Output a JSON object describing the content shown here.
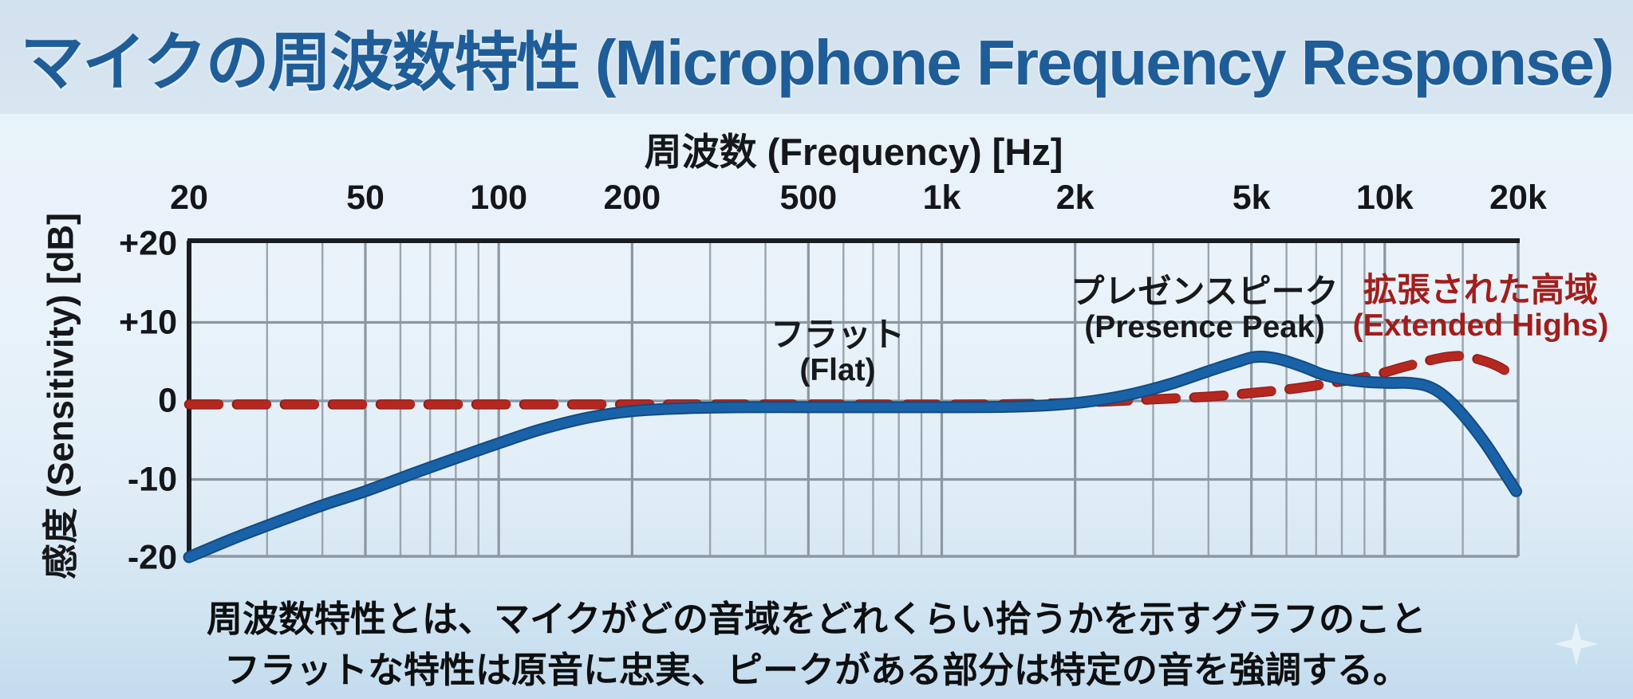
{
  "title": "マイクの周波数特性 (Microphone Frequency Response)",
  "chart_data": {
    "type": "line",
    "title": "マイクの周波数特性 (Microphone Frequency Response)",
    "xlabel": "周波数 (Frequency) [Hz]",
    "ylabel": "感度 (Sensitivity) [dB]",
    "x_scale": "log",
    "x_range_hz": [
      20,
      20000
    ],
    "y_range_db": [
      -20,
      20
    ],
    "grid": true,
    "x_ticks": [
      {
        "label": "20",
        "hz": 20
      },
      {
        "label": "50",
        "hz": 50
      },
      {
        "label": "100",
        "hz": 100
      },
      {
        "label": "200",
        "hz": 200
      },
      {
        "label": "500",
        "hz": 500
      },
      {
        "label": "1k",
        "hz": 1000
      },
      {
        "label": "2k",
        "hz": 2000
      },
      {
        "label": "5k",
        "hz": 5000
      },
      {
        "label": "10k",
        "hz": 10000
      },
      {
        "label": "20k",
        "hz": 20000
      }
    ],
    "y_ticks": [
      {
        "label": "+20",
        "db": 20
      },
      {
        "label": "+10",
        "db": 10
      },
      {
        "label": "0",
        "db": 0
      },
      {
        "label": "-10",
        "db": -10
      },
      {
        "label": "-20",
        "db": -20
      }
    ],
    "minor_gridlines_hz": [
      30,
      40,
      60,
      70,
      80,
      90,
      300,
      400,
      600,
      700,
      800,
      900,
      3000,
      4000,
      6000,
      7000,
      8000,
      9000,
      15000
    ],
    "series": [
      {
        "name": "flat-with-presence-peak",
        "style": "solid",
        "color": "#1a62a8",
        "edge_color": "#124b80",
        "points": [
          [
            20,
            -19.9
          ],
          [
            25,
            -17.6
          ],
          [
            32,
            -15.3
          ],
          [
            40,
            -13.3
          ],
          [
            50,
            -11.5
          ],
          [
            63,
            -9.4
          ],
          [
            80,
            -7.3
          ],
          [
            100,
            -5.4
          ],
          [
            125,
            -3.6
          ],
          [
            160,
            -2.1
          ],
          [
            200,
            -1.3
          ],
          [
            260,
            -0.95
          ],
          [
            350,
            -0.8
          ],
          [
            500,
            -0.8
          ],
          [
            700,
            -0.8
          ],
          [
            1000,
            -0.8
          ],
          [
            1400,
            -0.75
          ],
          [
            1800,
            -0.5
          ],
          [
            2200,
            0
          ],
          [
            2700,
            0.9
          ],
          [
            3300,
            2.2
          ],
          [
            4000,
            3.8
          ],
          [
            4600,
            4.9
          ],
          [
            5100,
            5.6
          ],
          [
            5700,
            5.4
          ],
          [
            6500,
            4.4
          ],
          [
            7300,
            3.3
          ],
          [
            8200,
            2.7
          ],
          [
            9200,
            2.4
          ],
          [
            10300,
            2.3
          ],
          [
            11300,
            2.3
          ],
          [
            12300,
            2.0
          ],
          [
            13200,
            1.2
          ],
          [
            14200,
            -0.3
          ],
          [
            15500,
            -2.7
          ],
          [
            17000,
            -5.7
          ],
          [
            18500,
            -8.9
          ],
          [
            19800,
            -11.5
          ]
        ]
      },
      {
        "name": "extended-highs",
        "style": "dashed",
        "color": "#b52820",
        "edge_color": "#8e1d18",
        "points": [
          [
            20,
            -0.45
          ],
          [
            300,
            -0.45
          ],
          [
            700,
            -0.45
          ],
          [
            1200,
            -0.45
          ],
          [
            1700,
            -0.35
          ],
          [
            2300,
            -0.1
          ],
          [
            3000,
            0.2
          ],
          [
            4000,
            0.55
          ],
          [
            5000,
            1.0
          ],
          [
            6300,
            1.6
          ],
          [
            8000,
            2.5
          ],
          [
            9500,
            3.3
          ],
          [
            11000,
            4.3
          ],
          [
            12500,
            5.1
          ],
          [
            13800,
            5.6
          ],
          [
            15000,
            5.7
          ],
          [
            16500,
            5.2
          ],
          [
            18000,
            4.4
          ],
          [
            19800,
            3.0
          ]
        ]
      }
    ],
    "annotations": [
      {
        "name": "flat",
        "line1": "フラット",
        "line2": "(Flat)",
        "color": "#17191b"
      },
      {
        "name": "presence-peak",
        "line1": "プレゼンスピーク",
        "line2": "(Presence Peak)",
        "color": "#17191b"
      },
      {
        "name": "extended-highs",
        "line1": "拡張された高域",
        "line2": "(Extended Highs)",
        "color": "#a11e1c"
      }
    ]
  },
  "caption": {
    "line1": "周波数特性とは、マイクがどの音域をどれくらい拾うかを示すグラフのこと",
    "line2": "フラットな特性は原音に忠実、ピークがある部分は特定の音を強調する。"
  },
  "colors": {
    "title_text": "#1e5d97",
    "title_band_bg": "#d5e3ef",
    "page_bg": "#e9f2f9",
    "grid_major": "#8c97a1",
    "grid_minor": "#9aa5ae",
    "axis_border_dark": "#1a1d20",
    "curve_blue": "#1a62a8",
    "curve_red_dashed": "#b52820",
    "caption_text": "#0e0f10"
  },
  "icons": {
    "sparkle": "sparkle-watermark"
  }
}
